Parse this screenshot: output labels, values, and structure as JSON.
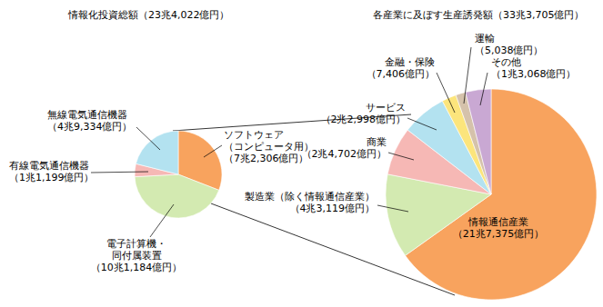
{
  "chart_data": [
    {
      "type": "pie",
      "title": "情報化投資総額（23兆4,022億円）",
      "categories": [
        "ソフトウェア\n（コンピュータ用）",
        "電子計算機・\n同付属装置",
        "有線電気通信機器",
        "無線電気通信機器"
      ],
      "values": [
        72306,
        101184,
        11199,
        49334
      ],
      "value_labels": [
        "（7兆2,306億円）",
        "（10兆1,184億円）",
        "（1兆1,199億円）",
        "（4兆9,334億円）"
      ],
      "colors": [
        "#f8a35e",
        "#d3eab1",
        "#f6b8b5",
        "#b3e2f0"
      ],
      "data_labels": true
    },
    {
      "type": "pie",
      "title": "各産業に及ぼす生産誘発額（33兆3,705億円）",
      "categories": [
        "情報通信産業",
        "製造業（除く情報通信産業）",
        "商業",
        "サービス",
        "金融・保険",
        "運輸",
        "その他"
      ],
      "values": [
        217375,
        43119,
        24702,
        22998,
        7406,
        5038,
        13068
      ],
      "value_labels": [
        "（21兆7,375億円）",
        "（4兆3,119億円）",
        "（2兆4,702億円）",
        "（2兆2,998億円）",
        "（7,406億円）",
        "（5,038億円）",
        "（1兆3,068億円）"
      ],
      "colors": [
        "#f8a35e",
        "#d3eab1",
        "#f6b8b5",
        "#b3e2f0",
        "#fce57c",
        "#d5c2ab",
        "#c9a8d3"
      ],
      "data_labels": true
    }
  ]
}
